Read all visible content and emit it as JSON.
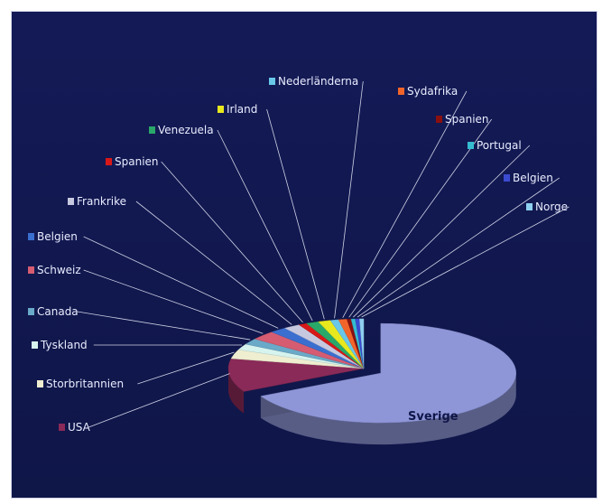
{
  "chart_data": {
    "type": "pie",
    "title": "",
    "is_3d": true,
    "exploded_slice": "Sverige",
    "categories": [
      "Sverige",
      "USA",
      "Storbritannien",
      "Tyskland",
      "Canada",
      "Schweiz",
      "Belgien",
      "Frankrike",
      "Spanien",
      "Venezuela",
      "Irland",
      "Nederländerna",
      "Sydafrika",
      "Spanien",
      "Portugal",
      "Belgien",
      "Norge"
    ],
    "values": [
      68,
      11,
      3,
      2,
      2,
      3,
      2,
      2,
      1,
      1.5,
      1.5,
      1,
      1,
      0.5,
      0.5,
      0.5,
      0.5
    ],
    "colors": [
      "#8e96d8",
      "#8a2a58",
      "#efeed0",
      "#d6f3ee",
      "#6aa9c8",
      "#d65c72",
      "#3a6fd0",
      "#c6c8e0",
      "#d81818",
      "#2aa86a",
      "#e8e81e",
      "#69c7e8",
      "#f2652a",
      "#8a1010",
      "#35bcd0",
      "#3b4bd0",
      "#8fd0f0"
    ],
    "slice_label": "Sverige",
    "legend_placement": "radial callouts with leader lines"
  }
}
